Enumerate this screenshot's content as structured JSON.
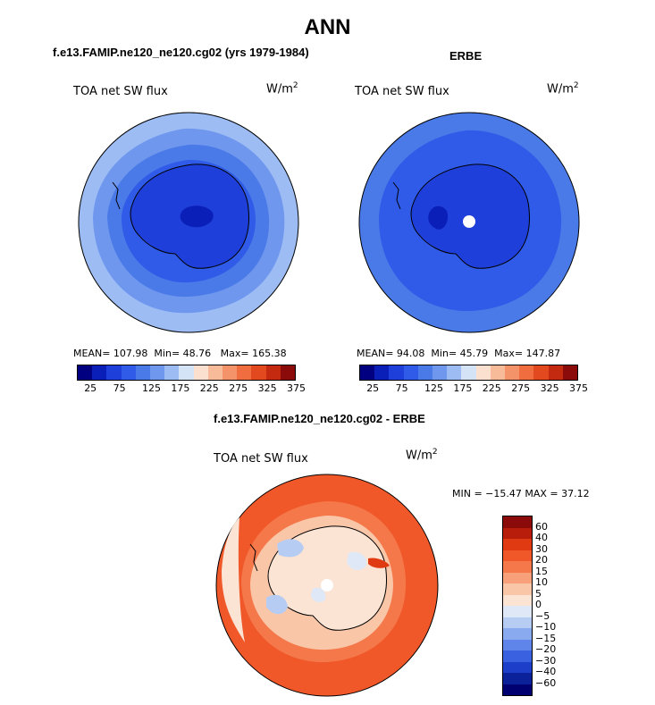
{
  "title": "ANN",
  "panels": [
    {
      "case_title": "f.e13.FAMIP.ne120_ne120.cg02 (yrs 1979-1984)",
      "var_label": "TOA net SW flux",
      "units_base": "W/m",
      "units_exp": "2",
      "mean_label": "MEAN=",
      "mean": "107.98",
      "min_label": "Min=",
      "min": "48.76",
      "max_label": "Max=",
      "max": "165.38",
      "colorbar_ticks": [
        "25",
        "75",
        "125",
        "175",
        "225",
        "275",
        "325",
        "375"
      ]
    },
    {
      "case_title": "ERBE",
      "var_label": "TOA net SW flux",
      "units_base": "W/m",
      "units_exp": "2",
      "mean_label": "MEAN=",
      "mean": "94.08",
      "min_label": "Min=",
      "min": "45.79",
      "max_label": "Max=",
      "max": "147.87",
      "colorbar_ticks": [
        "25",
        "75",
        "125",
        "175",
        "225",
        "275",
        "325",
        "375"
      ]
    }
  ],
  "diff_panel": {
    "case_title": "f.e13.FAMIP.ne120_ne120.cg02 - ERBE",
    "var_label": "TOA net SW flux",
    "units_base": "W/m",
    "units_exp": "2",
    "minmax_text": "MIN = −15.47 MAX =  37.12",
    "colorbar_ticks": [
      "60",
      "40",
      "30",
      "20",
      "15",
      "10",
      "5",
      "0",
      "−5",
      "−10",
      "−15",
      "−20",
      "−30",
      "−40",
      "−60"
    ]
  },
  "colors": {
    "abs_scale": [
      "#000080",
      "#0a1fb8",
      "#1e3fd9",
      "#2f5be8",
      "#4a7ae8",
      "#6f97ee",
      "#9dbcf4",
      "#d5e3f7",
      "#fbe0cf",
      "#f8bb9a",
      "#f4936a",
      "#ef6d3f",
      "#e3491f",
      "#c42a10",
      "#8b0a0a"
    ],
    "diff_scale": [
      "#8b0a0a",
      "#b81c0a",
      "#e03a12",
      "#f0582a",
      "#f5784a",
      "#f7a07a",
      "#fac6a8",
      "#fbe4d4",
      "#dfe8f7",
      "#b7ccf3",
      "#8aaaf0",
      "#5f85ea",
      "#3a62e0",
      "#1c3ec8",
      "#0a2199",
      "#000070"
    ]
  }
}
